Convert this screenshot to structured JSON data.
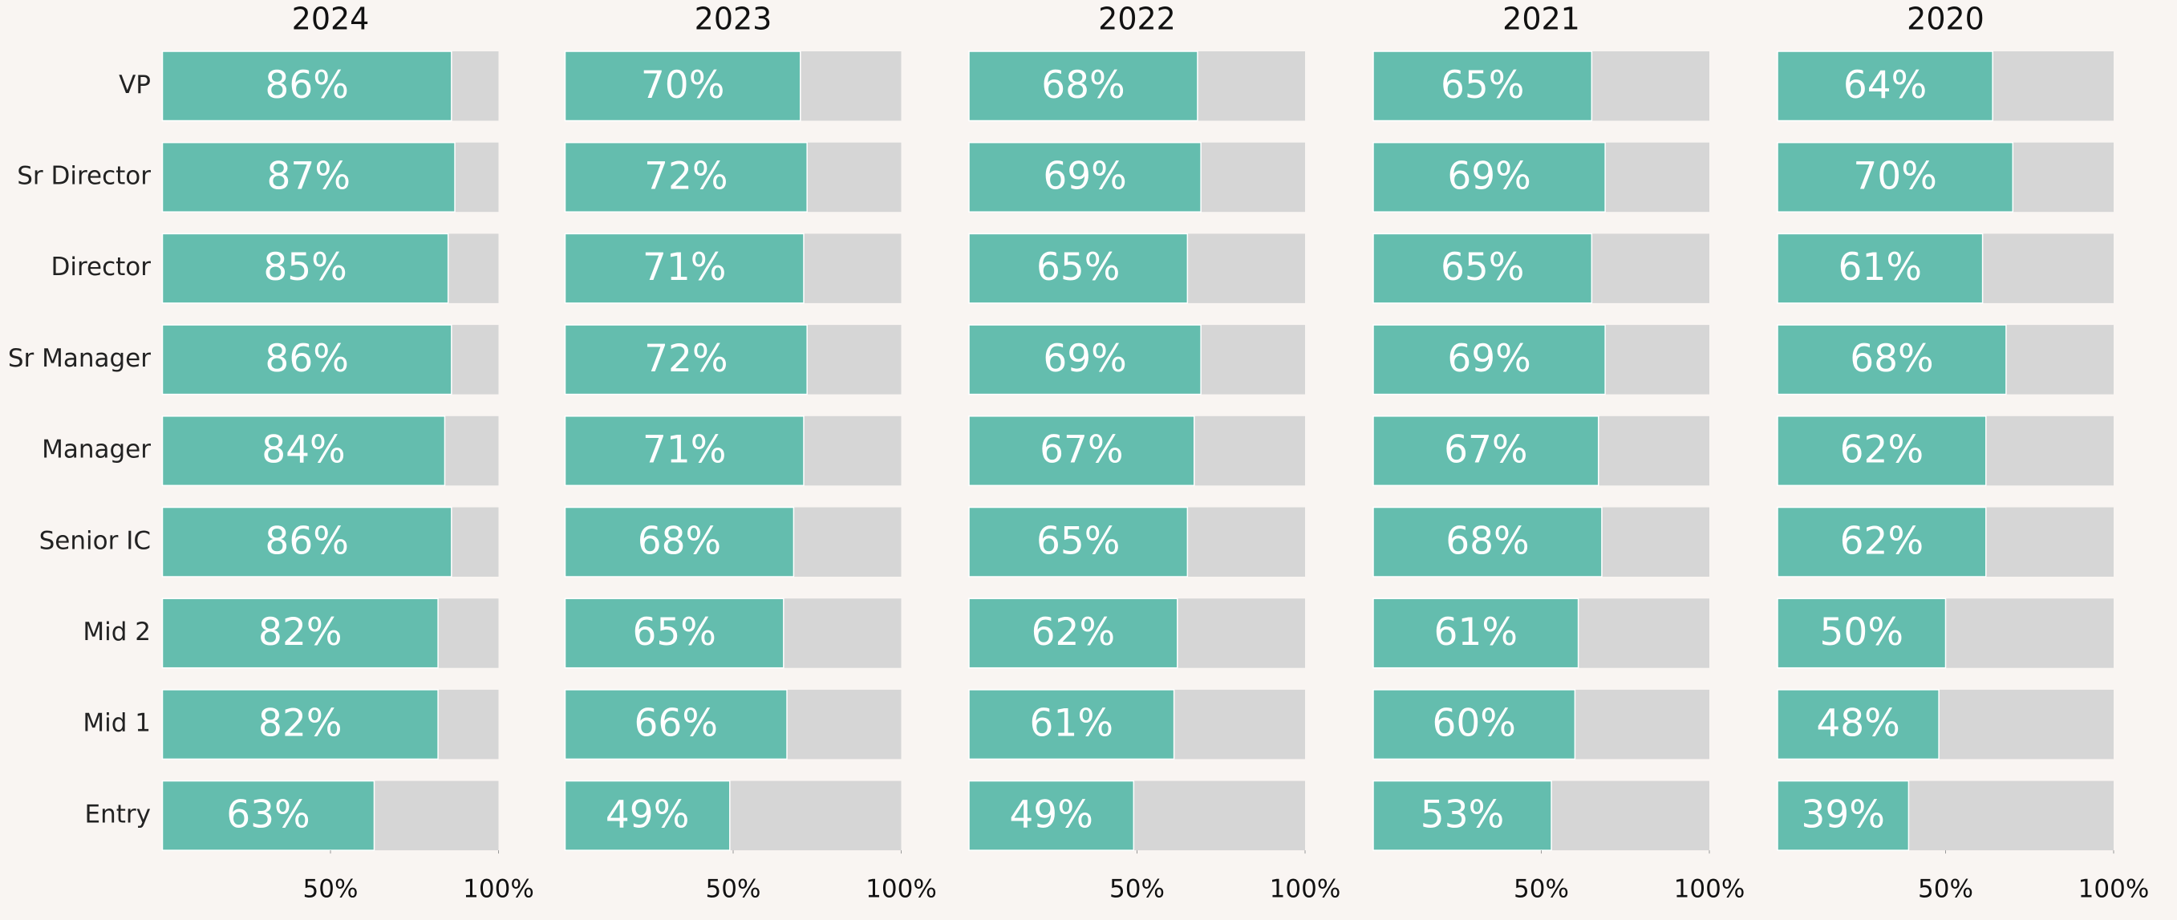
{
  "chart_data": {
    "type": "bar",
    "orientation": "horizontal",
    "categories": [
      "VP",
      "Sr Director",
      "Director",
      "Sr Manager",
      "Manager",
      "Senior IC",
      "Mid 2",
      "Mid 1",
      "Entry"
    ],
    "series": [
      {
        "name": "2024",
        "values": [
          86,
          87,
          85,
          86,
          84,
          86,
          82,
          82,
          63
        ],
        "value_labels": [
          "86%",
          "87%",
          "85%",
          "86%",
          "84%",
          "86%",
          "82%",
          "82%",
          "63%"
        ]
      },
      {
        "name": "2023",
        "values": [
          70,
          72,
          71,
          72,
          71,
          68,
          65,
          66,
          49
        ],
        "value_labels": [
          "70%",
          "72%",
          "71%",
          "72%",
          "71%",
          "68%",
          "65%",
          "66%",
          "49%"
        ]
      },
      {
        "name": "2022",
        "values": [
          68,
          69,
          65,
          69,
          67,
          65,
          62,
          61,
          49
        ],
        "value_labels": [
          "68%",
          "69%",
          "65%",
          "69%",
          "67%",
          "65%",
          "62%",
          "61%",
          "49%"
        ]
      },
      {
        "name": "2021",
        "values": [
          65,
          69,
          65,
          69,
          67,
          68,
          61,
          60,
          53
        ],
        "value_labels": [
          "65%",
          "69%",
          "65%",
          "69%",
          "67%",
          "68%",
          "61%",
          "60%",
          "53%"
        ]
      },
      {
        "name": "2020",
        "values": [
          64,
          70,
          61,
          68,
          62,
          62,
          50,
          48,
          39
        ],
        "value_labels": [
          "64%",
          "70%",
          "61%",
          "68%",
          "62%",
          "62%",
          "50%",
          "48%",
          "39%"
        ]
      }
    ],
    "color": "#64bdae",
    "track_color": "#d6d6d6",
    "xlim": [
      0,
      100
    ],
    "xticks": [
      {
        "value": 50,
        "label": "50%"
      },
      {
        "value": 100,
        "label": "100%"
      }
    ]
  }
}
